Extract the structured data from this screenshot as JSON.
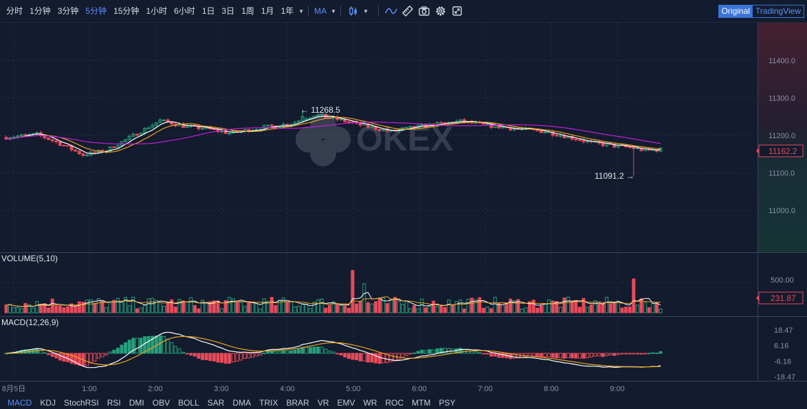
{
  "toolbar": {
    "timeframes": [
      {
        "label": "分时"
      },
      {
        "label": "1分钟"
      },
      {
        "label": "3分钟"
      },
      {
        "label": "5分钟",
        "active": true
      },
      {
        "label": "15分钟"
      },
      {
        "label": "1小时"
      },
      {
        "label": "6小时"
      },
      {
        "label": "1日"
      },
      {
        "label": "3日"
      },
      {
        "label": "1周"
      },
      {
        "label": "1月"
      },
      {
        "label": "1年"
      }
    ],
    "indicator": "MA",
    "icons": [
      "candle-type-icon",
      "chevron-down-icon",
      "line-indicator-icon",
      "ruler-icon",
      "camera-icon",
      "gear-icon",
      "fullscreen-icon"
    ],
    "view_original": "Original",
    "view_tradingview": "TradingView",
    "accent": "#5b8ff9"
  },
  "chart_data": {
    "type": "candlestick",
    "watermark": "OKEX",
    "colors": {
      "up": "#26a17b",
      "down": "#e84a5a",
      "ma_white": "#ffffff",
      "ma_orange": "#f0a41a",
      "ma_magenta": "#c020d8"
    },
    "price_axis": {
      "ticks": [
        11000.0,
        11100.0,
        11200.0,
        11300.0,
        11400.0
      ],
      "labels": [
        "11000.0",
        "11100.0",
        "11200.0",
        "11300.0",
        "11400.0"
      ],
      "current": "11162.2"
    },
    "time_axis": [
      "8月5日",
      "1:00",
      "2:00",
      "3:00",
      "4:00",
      "5:00",
      "6:00",
      "7:00",
      "8:00",
      "9:00"
    ],
    "high_marker": "← 11268.5",
    "low_marker": "11091.2 →",
    "high_value": 11268.5,
    "low_value": 11091.2,
    "price_path": [
      [
        0,
        11195
      ],
      [
        8,
        11203
      ],
      [
        14,
        11178
      ],
      [
        20,
        11148
      ],
      [
        26,
        11160
      ],
      [
        34,
        11205
      ],
      [
        40,
        11240
      ],
      [
        46,
        11225
      ],
      [
        52,
        11218
      ],
      [
        58,
        11206
      ],
      [
        66,
        11220
      ],
      [
        74,
        11232
      ],
      [
        80,
        11255
      ],
      [
        86,
        11243
      ],
      [
        92,
        11228
      ],
      [
        100,
        11210
      ],
      [
        106,
        11222
      ],
      [
        112,
        11230
      ],
      [
        118,
        11238
      ],
      [
        124,
        11228
      ],
      [
        132,
        11218
      ],
      [
        140,
        11210
      ],
      [
        146,
        11196
      ],
      [
        152,
        11180
      ],
      [
        158,
        11172
      ],
      [
        162,
        11168
      ],
      [
        166,
        11160
      ],
      [
        170,
        11162
      ]
    ],
    "volume": {
      "label": "VOLUME(5,10)",
      "ticks": [
        "500.00"
      ],
      "current": "231.87"
    },
    "macd": {
      "label": "MACD(12,26,9)",
      "ticks": [
        "18.47",
        "6.16",
        "-6.16",
        "-18.47"
      ]
    }
  },
  "bottom_indicators": [
    {
      "label": "MACD",
      "active": true
    },
    {
      "label": "KDJ"
    },
    {
      "label": "StochRSI"
    },
    {
      "label": "RSI"
    },
    {
      "label": "DMI"
    },
    {
      "label": "OBV"
    },
    {
      "label": "BOLL"
    },
    {
      "label": "SAR"
    },
    {
      "label": "DMA"
    },
    {
      "label": "TRIX"
    },
    {
      "label": "BRAR"
    },
    {
      "label": "VR"
    },
    {
      "label": "EMV"
    },
    {
      "label": "WR"
    },
    {
      "label": "ROC"
    },
    {
      "label": "MTM"
    },
    {
      "label": "PSY"
    }
  ]
}
